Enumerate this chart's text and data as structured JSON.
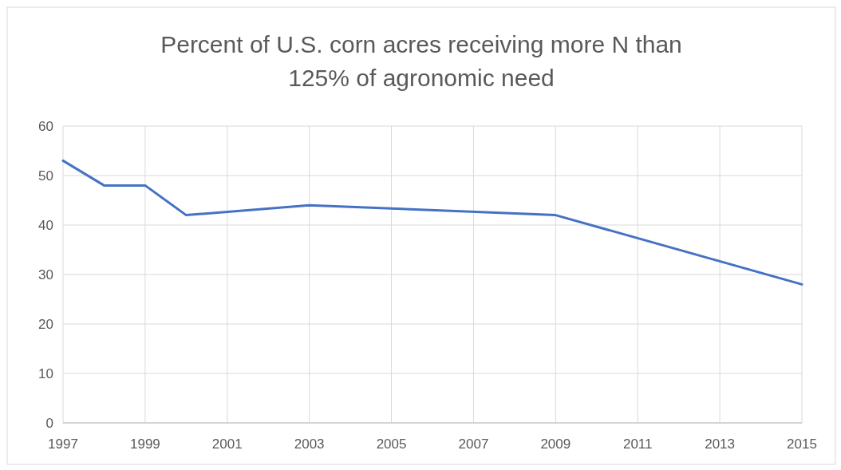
{
  "chart_data": {
    "type": "line",
    "title": "Percent of U.S. corn acres receiving more N than 125% of agronomic need",
    "x": [
      1997,
      1998,
      1999,
      2000,
      2003,
      2009,
      2015
    ],
    "series": [
      {
        "color": "#4472c4",
        "values": [
          53,
          48,
          48,
          42,
          44,
          42,
          28
        ]
      }
    ],
    "xlim": [
      1997,
      2015
    ],
    "xticks": [
      1997,
      1999,
      2001,
      2003,
      2005,
      2007,
      2009,
      2011,
      2013,
      2015
    ],
    "ylim": [
      0,
      60
    ],
    "yticks": [
      0,
      10,
      20,
      30,
      40,
      50,
      60
    ],
    "grid": true,
    "marker": "none",
    "line_style": "solid"
  }
}
